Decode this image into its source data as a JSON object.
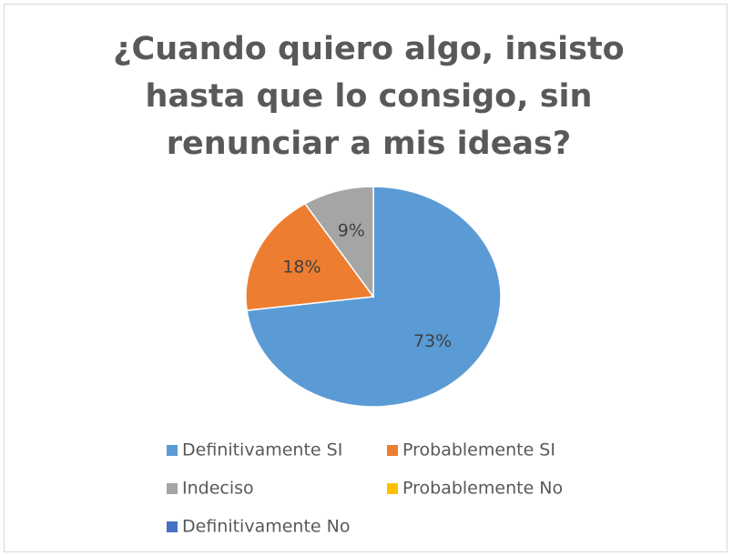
{
  "chart_data": {
    "type": "pie",
    "title": "¿Cuando quiero algo, insisto hasta que lo consigo, sin renunciar a mis ideas?",
    "categories": [
      "Definitivamente SI",
      "Probablemente SI",
      "Indeciso",
      "Probablemente No",
      "Definitivamente No"
    ],
    "values": [
      73,
      18,
      9,
      0,
      0
    ],
    "value_labels": [
      "73%",
      "18%",
      "9%",
      null,
      null
    ],
    "colors": [
      "#5b9bd5",
      "#ed7d31",
      "#a5a5a5",
      "#ffc000",
      "#4472c4"
    ],
    "legend": "bottom"
  }
}
